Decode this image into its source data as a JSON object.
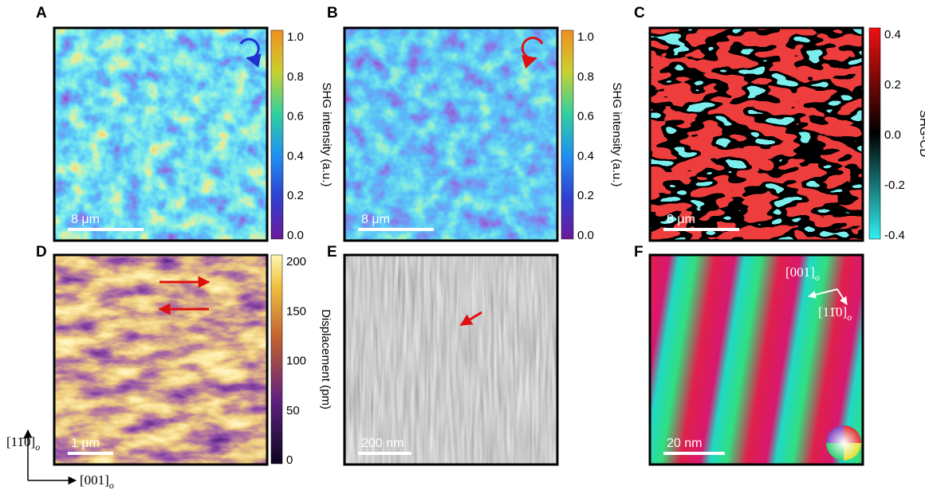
{
  "panels": [
    {
      "label": "A",
      "scale_bar": "8 μm",
      "colorbar": {
        "title": "SHG intensity (a.u.)",
        "ticks": [
          "1.0",
          "0.8",
          "0.6",
          "0.4",
          "0.2",
          "0.0"
        ]
      }
    },
    {
      "label": "B",
      "scale_bar": "8 μm",
      "colorbar": {
        "title": "SHG intensity (a.u.)",
        "ticks": [
          "1.0",
          "0.8",
          "0.6",
          "0.4",
          "0.2",
          "0.0"
        ]
      }
    },
    {
      "label": "C",
      "scale_bar": "8 μm",
      "colorbar": {
        "title": "SHG-CD",
        "ticks": [
          "0.4",
          "0.2",
          "0.0",
          "-0.2",
          "-0.4"
        ]
      }
    },
    {
      "label": "D",
      "scale_bar": "1 μm",
      "colorbar": {
        "title": "Displacement (pm)",
        "ticks": [
          "200",
          "150",
          "100",
          "50",
          "0"
        ]
      }
    },
    {
      "label": "E",
      "scale_bar": "200 nm"
    },
    {
      "label": "F",
      "scale_bar": "20 nm",
      "directions": [
        {
          "text": "[001]",
          "sub": "o"
        },
        {
          "text": "[11̄0]",
          "sub": "o"
        }
      ]
    }
  ],
  "axes": {
    "vertical": {
      "text": "[11̄0]",
      "sub": "o"
    },
    "horizontal": {
      "text": "[001]",
      "sub": "o"
    }
  }
}
